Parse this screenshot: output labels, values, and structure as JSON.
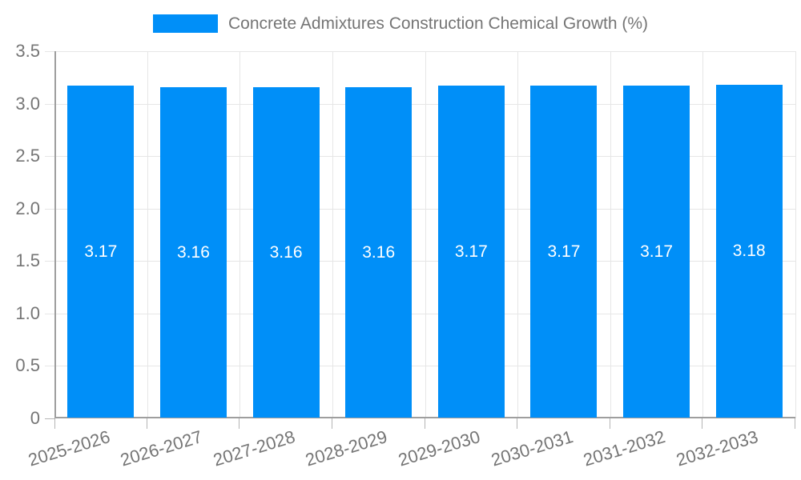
{
  "chart_data": {
    "type": "bar",
    "title": "Concrete Admixtures Construction Chemical Growth (%)",
    "legend_position": "top",
    "grid": true,
    "categories": [
      "2025-2026",
      "2026-2027",
      "2027-2028",
      "2028-2029",
      "2029-2030",
      "2030-2031",
      "2031-2032",
      "2032-2033"
    ],
    "values": [
      3.17,
      3.16,
      3.16,
      3.16,
      3.17,
      3.17,
      3.17,
      3.18
    ],
    "value_labels": [
      "3.17",
      "3.16",
      "3.16",
      "3.16",
      "3.17",
      "3.17",
      "3.17",
      "3.18"
    ],
    "xlabel": "",
    "ylabel": "",
    "ylim": [
      0,
      3.5
    ],
    "ytick_step": 0.5,
    "ytick_labels": [
      "0",
      "0.5",
      "1.0",
      "1.5",
      "2.0",
      "2.5",
      "3.0",
      "3.5"
    ],
    "colors": {
      "bar": "#008ff8",
      "title_text": "#757575",
      "axis_text": "#757575",
      "bar_label_text": "#ffffff",
      "gridline": "#e6e6e6",
      "axis_line": "#9e9e9e",
      "tick_stub": "#b5b5b5",
      "background": "#ffffff"
    }
  }
}
